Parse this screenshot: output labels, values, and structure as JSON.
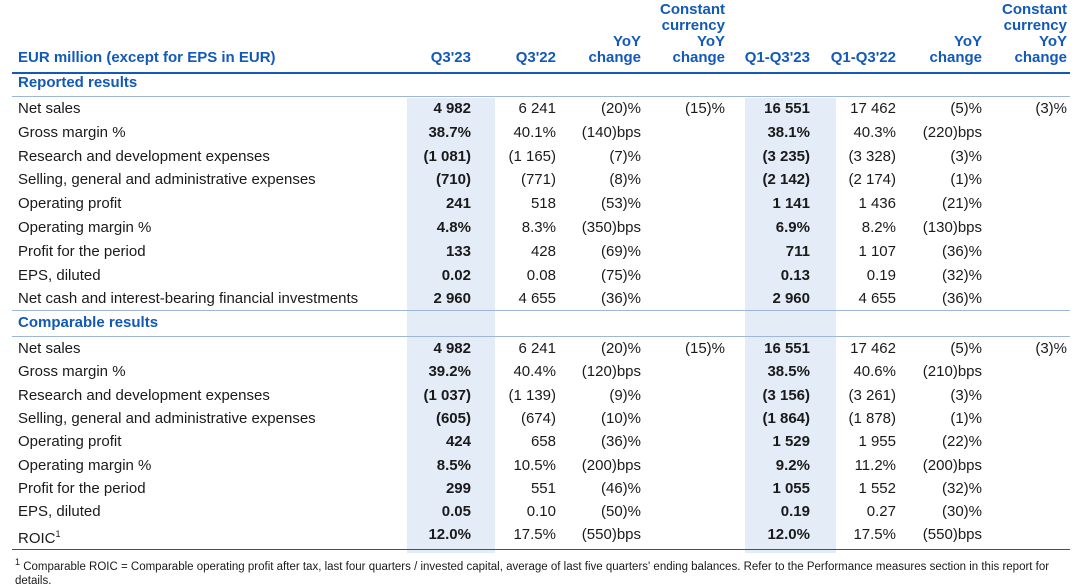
{
  "header": {
    "label": "EUR million (except for EPS in EUR)",
    "cols": [
      [
        "Q3'23"
      ],
      [
        "Q3'22"
      ],
      [
        "YoY",
        "change"
      ],
      [
        "Constant",
        "currency",
        "YoY",
        "change"
      ],
      [
        "Q1-Q3'23"
      ],
      [
        "Q1-Q3'22"
      ],
      [
        "YoY",
        "change"
      ],
      [
        "Constant",
        "currency",
        "YoY",
        "change"
      ]
    ]
  },
  "reported": {
    "title": "Reported results",
    "rows": [
      {
        "label": "Net sales",
        "v": [
          "4 982",
          "6 241",
          "(20)%",
          "(15)%",
          "16 551",
          "17 462",
          "(5)%",
          "(3)%"
        ]
      },
      {
        "label": "Gross margin %",
        "v": [
          "38.7%",
          "40.1%",
          "(140)bps",
          "",
          "38.1%",
          "40.3%",
          "(220)bps",
          ""
        ]
      },
      {
        "label": "Research and development expenses",
        "v": [
          "(1 081)",
          "(1 165)",
          "(7)%",
          "",
          "(3 235)",
          "(3 328)",
          "(3)%",
          ""
        ]
      },
      {
        "label": "Selling, general and administrative expenses",
        "v": [
          "(710)",
          "(771)",
          "(8)%",
          "",
          "(2 142)",
          "(2 174)",
          "(1)%",
          ""
        ]
      },
      {
        "label": "Operating profit",
        "v": [
          "241",
          "518",
          "(53)%",
          "",
          "1 141",
          "1 436",
          "(21)%",
          ""
        ]
      },
      {
        "label": "Operating margin %",
        "v": [
          "4.8%",
          "8.3%",
          "(350)bps",
          "",
          "6.9%",
          "8.2%",
          "(130)bps",
          ""
        ]
      },
      {
        "label": "Profit for the period",
        "v": [
          "133",
          "428",
          "(69)%",
          "",
          "711",
          "1 107",
          "(36)%",
          ""
        ]
      },
      {
        "label": "EPS, diluted",
        "v": [
          "0.02",
          "0.08",
          "(75)%",
          "",
          "0.13",
          "0.19",
          "(32)%",
          ""
        ]
      },
      {
        "label": "Net cash and interest-bearing financial investments",
        "v": [
          "2 960",
          "4 655",
          "(36)%",
          "",
          "2 960",
          "4 655",
          "(36)%",
          ""
        ]
      }
    ]
  },
  "comparable": {
    "title": "Comparable results",
    "rows": [
      {
        "label": "Net sales",
        "v": [
          "4 982",
          "6 241",
          "(20)%",
          "(15)%",
          "16 551",
          "17 462",
          "(5)%",
          "(3)%"
        ]
      },
      {
        "label": "Gross margin %",
        "v": [
          "39.2%",
          "40.4%",
          "(120)bps",
          "",
          "38.5%",
          "40.6%",
          "(210)bps",
          ""
        ]
      },
      {
        "label": "Research and development expenses",
        "v": [
          "(1 037)",
          "(1 139)",
          "(9)%",
          "",
          "(3 156)",
          "(3 261)",
          "(3)%",
          ""
        ]
      },
      {
        "label": "Selling, general and administrative expenses",
        "v": [
          "(605)",
          "(674)",
          "(10)%",
          "",
          "(1 864)",
          "(1 878)",
          "(1)%",
          ""
        ]
      },
      {
        "label": "Operating profit",
        "v": [
          "424",
          "658",
          "(36)%",
          "",
          "1 529",
          "1 955",
          "(22)%",
          ""
        ]
      },
      {
        "label": "Operating margin %",
        "v": [
          "8.5%",
          "10.5%",
          "(200)bps",
          "",
          "9.2%",
          "11.2%",
          "(200)bps",
          ""
        ]
      },
      {
        "label": "Profit for the period",
        "v": [
          "299",
          "551",
          "(46)%",
          "",
          "1 055",
          "1 552",
          "(32)%",
          ""
        ]
      },
      {
        "label": "EPS, diluted",
        "v": [
          "0.05",
          "0.10",
          "(50)%",
          "",
          "0.19",
          "0.27",
          "(30)%",
          ""
        ]
      },
      {
        "label": "ROIC",
        "sup": "1",
        "v": [
          "12.0%",
          "17.5%",
          "(550)bps",
          "",
          "12.0%",
          "17.5%",
          "(550)bps",
          ""
        ]
      }
    ]
  },
  "footnote": {
    "mark": "1",
    "text": " Comparable ROIC = Comparable operating profit after tax, last four quarters / invested capital, average of last five quarters' ending balances. Refer to the Performance measures section in this report for details."
  }
}
